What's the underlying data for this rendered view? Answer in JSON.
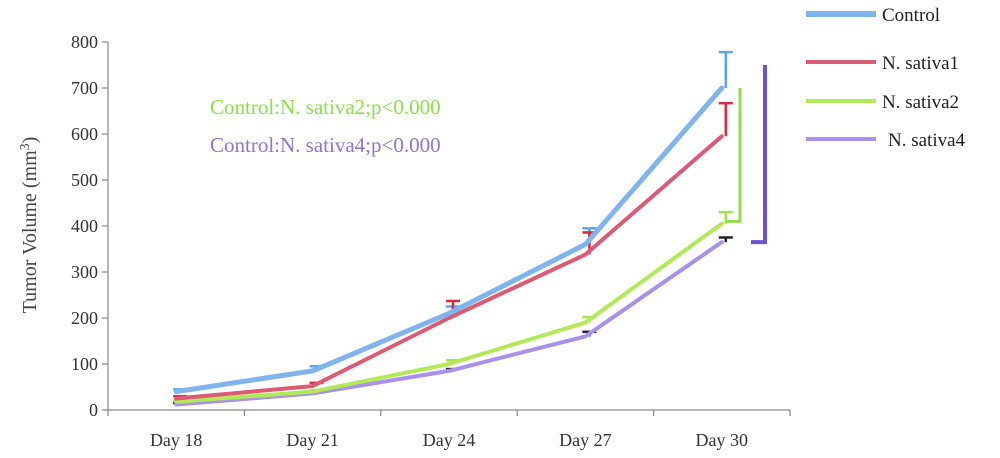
{
  "chart_data": {
    "type": "line",
    "categories": [
      "Day 18",
      "Day 21",
      "Day 24",
      "Day 27",
      "Day 30"
    ],
    "ylabel": "Tumor Volume (mm3)",
    "ylabel_main": "Tumor Volume (mm",
    "ylabel_sup": "3",
    "ylabel_close": ")",
    "ylim": [
      0,
      800
    ],
    "yticks": [
      0,
      100,
      200,
      300,
      400,
      500,
      600,
      700,
      800
    ],
    "grid": false,
    "legend_position": "top-right",
    "series": [
      {
        "name": "Control",
        "color": "#7fb4ee",
        "values": [
          40,
          85,
          210,
          360,
          700
        ],
        "error": [
          5,
          10,
          15,
          35,
          78
        ],
        "error_color": "#5da4e8"
      },
      {
        "name": "N. sativa1",
        "color": "#dc5a74",
        "values": [
          25,
          52,
          200,
          338,
          595
        ],
        "error": [
          5,
          7,
          37,
          48,
          72
        ],
        "error_color": "#d92b3c"
      },
      {
        "name": "N. sativa2",
        "color": "#b2ea57",
        "values": [
          18,
          40,
          100,
          190,
          405
        ],
        "error": [
          3,
          3,
          8,
          12,
          25
        ],
        "error_color": "#a7e04e"
      },
      {
        "name": "N. sativa4",
        "color": "#a990ee",
        "values": [
          12,
          36,
          85,
          160,
          365
        ],
        "error": [
          3,
          2,
          4,
          10,
          10
        ],
        "error_color": "#222222"
      }
    ],
    "annotations": [
      {
        "text": "Control:N. sativa2;p<0.000",
        "color": "#8be04a"
      },
      {
        "text": "Control:N. sativa4;p<0.000",
        "color": "#8a76dc"
      }
    ],
    "brackets": [
      {
        "color": "#8be04a",
        "from": 410,
        "to": 700
      },
      {
        "color": "#6b52d0",
        "from": 365,
        "to": 750
      }
    ]
  }
}
